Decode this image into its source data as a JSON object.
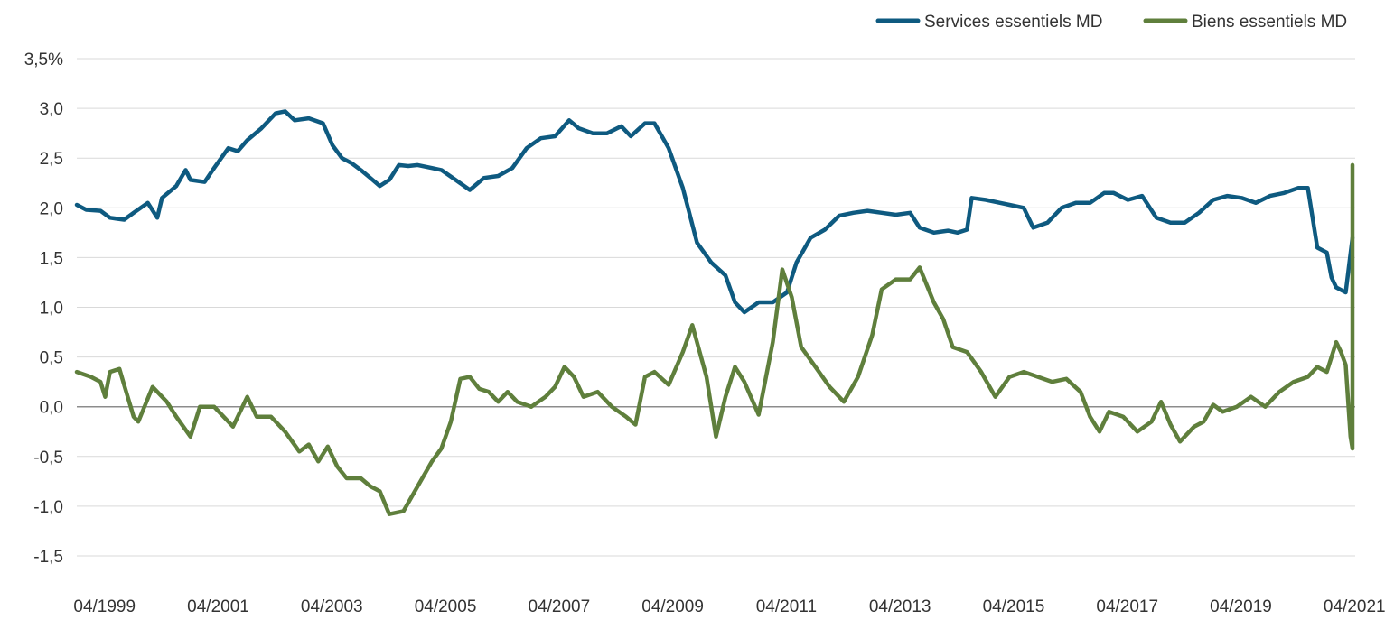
{
  "chart_data": {
    "type": "line",
    "title": "",
    "xlabel": "",
    "ylabel": "",
    "ylim": [
      -1.5,
      3.5
    ],
    "y_ticks": [
      3.5,
      3.0,
      2.5,
      2.0,
      1.5,
      1.0,
      0.5,
      0.0,
      -0.5,
      -1.0,
      -1.5
    ],
    "y_tick_labels": [
      "3,5%",
      "3,0",
      "2,5",
      "2,0",
      "1,5",
      "1,0",
      "0,5",
      "0,0",
      "-0,5",
      "-1,0",
      "-1,5"
    ],
    "x_range": [
      "1999-01",
      "2021-07"
    ],
    "x_ticks": [
      "1999-04",
      "2001-04",
      "2003-04",
      "2005-04",
      "2007-04",
      "2009-04",
      "2011-04",
      "2013-04",
      "2015-04",
      "2017-04",
      "2019-04",
      "2021-04"
    ],
    "x_tick_labels": [
      "04/1999",
      "04/2001",
      "04/2003",
      "04/2005",
      "04/2007",
      "04/2009",
      "04/2011",
      "04/2013",
      "04/2015",
      "04/2017",
      "04/2019",
      "04/2021"
    ],
    "grid": "horizontal",
    "zero_line": true,
    "legend_position": "top-right",
    "series": [
      {
        "name": "Services essentiels MD",
        "color": "#0e5a80",
        "points": [
          [
            "1999-01",
            2.03
          ],
          [
            "1999-03",
            1.98
          ],
          [
            "1999-06",
            1.97
          ],
          [
            "1999-08",
            1.9
          ],
          [
            "1999-11",
            1.88
          ],
          [
            "2000-01",
            1.95
          ],
          [
            "2000-04",
            2.05
          ],
          [
            "2000-06",
            1.9
          ],
          [
            "2000-07",
            2.1
          ],
          [
            "2000-10",
            2.22
          ],
          [
            "2000-12",
            2.38
          ],
          [
            "2001-01",
            2.28
          ],
          [
            "2001-04",
            2.26
          ],
          [
            "2001-06",
            2.4
          ],
          [
            "2001-09",
            2.6
          ],
          [
            "2001-11",
            2.57
          ],
          [
            "2002-01",
            2.68
          ],
          [
            "2002-04",
            2.8
          ],
          [
            "2002-07",
            2.95
          ],
          [
            "2002-09",
            2.97
          ],
          [
            "2002-11",
            2.88
          ],
          [
            "2003-02",
            2.9
          ],
          [
            "2003-05",
            2.85
          ],
          [
            "2003-07",
            2.63
          ],
          [
            "2003-09",
            2.5
          ],
          [
            "2003-11",
            2.45
          ],
          [
            "2004-01",
            2.38
          ],
          [
            "2004-03",
            2.3
          ],
          [
            "2004-05",
            2.22
          ],
          [
            "2004-07",
            2.28
          ],
          [
            "2004-09",
            2.43
          ],
          [
            "2004-11",
            2.42
          ],
          [
            "2005-01",
            2.43
          ],
          [
            "2005-04",
            2.4
          ],
          [
            "2005-06",
            2.38
          ],
          [
            "2005-09",
            2.28
          ],
          [
            "2005-12",
            2.18
          ],
          [
            "2006-03",
            2.3
          ],
          [
            "2006-06",
            2.32
          ],
          [
            "2006-09",
            2.4
          ],
          [
            "2006-12",
            2.6
          ],
          [
            "2007-03",
            2.7
          ],
          [
            "2007-06",
            2.72
          ],
          [
            "2007-09",
            2.88
          ],
          [
            "2007-11",
            2.8
          ],
          [
            "2008-02",
            2.75
          ],
          [
            "2008-05",
            2.75
          ],
          [
            "2008-08",
            2.82
          ],
          [
            "2008-10",
            2.72
          ],
          [
            "2009-01",
            2.85
          ],
          [
            "2009-03",
            2.85
          ],
          [
            "2009-06",
            2.6
          ],
          [
            "2009-09",
            2.2
          ],
          [
            "2009-12",
            1.65
          ],
          [
            "2010-03",
            1.45
          ],
          [
            "2010-06",
            1.32
          ],
          [
            "2010-08",
            1.05
          ],
          [
            "2010-10",
            0.95
          ],
          [
            "2011-01",
            1.05
          ],
          [
            "2011-04",
            1.05
          ],
          [
            "2011-07",
            1.15
          ],
          [
            "2011-09",
            1.45
          ],
          [
            "2011-12",
            1.7
          ],
          [
            "2012-03",
            1.78
          ],
          [
            "2012-06",
            1.92
          ],
          [
            "2012-09",
            1.95
          ],
          [
            "2012-12",
            1.97
          ],
          [
            "2013-03",
            1.95
          ],
          [
            "2013-06",
            1.93
          ],
          [
            "2013-09",
            1.95
          ],
          [
            "2013-11",
            1.8
          ],
          [
            "2014-02",
            1.75
          ],
          [
            "2014-05",
            1.77
          ],
          [
            "2014-07",
            1.75
          ],
          [
            "2014-09",
            1.78
          ],
          [
            "2014-10",
            2.1
          ],
          [
            "2015-01",
            2.08
          ],
          [
            "2015-04",
            2.05
          ],
          [
            "2015-06",
            2.03
          ],
          [
            "2015-09",
            2.0
          ],
          [
            "2015-11",
            1.8
          ],
          [
            "2016-02",
            1.85
          ],
          [
            "2016-05",
            2.0
          ],
          [
            "2016-08",
            2.05
          ],
          [
            "2016-11",
            2.05
          ],
          [
            "2017-02",
            2.15
          ],
          [
            "2017-04",
            2.15
          ],
          [
            "2017-07",
            2.08
          ],
          [
            "2017-10",
            2.12
          ],
          [
            "2018-01",
            1.9
          ],
          [
            "2018-04",
            1.85
          ],
          [
            "2018-07",
            1.85
          ],
          [
            "2018-10",
            1.95
          ],
          [
            "2019-01",
            2.08
          ],
          [
            "2019-04",
            2.12
          ],
          [
            "2019-07",
            2.1
          ],
          [
            "2019-10",
            2.05
          ],
          [
            "2020-01",
            2.12
          ],
          [
            "2020-04",
            2.15
          ],
          [
            "2020-07",
            2.2
          ],
          [
            "2020-09",
            2.2
          ],
          [
            "2020-11",
            1.6
          ],
          [
            "2021-01",
            1.55
          ],
          [
            "2021-02",
            1.3
          ],
          [
            "2021-03",
            1.2
          ],
          [
            "2021-05",
            1.15
          ],
          [
            "2021-07",
            1.7
          ]
        ]
      },
      {
        "name": "Biens essentiels MD",
        "color": "#5f7f3c",
        "points": [
          [
            "1999-01",
            0.35
          ],
          [
            "1999-04",
            0.3
          ],
          [
            "1999-06",
            0.25
          ],
          [
            "1999-07",
            0.1
          ],
          [
            "1999-08",
            0.35
          ],
          [
            "1999-10",
            0.38
          ],
          [
            "1999-11",
            0.22
          ],
          [
            "2000-01",
            -0.1
          ],
          [
            "2000-02",
            -0.15
          ],
          [
            "2000-05",
            0.2
          ],
          [
            "2000-08",
            0.05
          ],
          [
            "2000-10",
            -0.1
          ],
          [
            "2001-01",
            -0.3
          ],
          [
            "2001-03",
            0.0
          ],
          [
            "2001-06",
            0.0
          ],
          [
            "2001-08",
            -0.1
          ],
          [
            "2001-10",
            -0.2
          ],
          [
            "2002-01",
            0.1
          ],
          [
            "2002-03",
            -0.1
          ],
          [
            "2002-06",
            -0.1
          ],
          [
            "2002-09",
            -0.25
          ],
          [
            "2002-12",
            -0.45
          ],
          [
            "2003-02",
            -0.38
          ],
          [
            "2003-04",
            -0.55
          ],
          [
            "2003-06",
            -0.4
          ],
          [
            "2003-08",
            -0.6
          ],
          [
            "2003-10",
            -0.72
          ],
          [
            "2004-01",
            -0.72
          ],
          [
            "2004-03",
            -0.8
          ],
          [
            "2004-05",
            -0.85
          ],
          [
            "2004-07",
            -1.08
          ],
          [
            "2004-10",
            -1.05
          ],
          [
            "2005-01",
            -0.8
          ],
          [
            "2005-04",
            -0.55
          ],
          [
            "2005-06",
            -0.42
          ],
          [
            "2005-08",
            -0.15
          ],
          [
            "2005-10",
            0.28
          ],
          [
            "2005-12",
            0.3
          ],
          [
            "2006-02",
            0.18
          ],
          [
            "2006-04",
            0.15
          ],
          [
            "2006-06",
            0.05
          ],
          [
            "2006-08",
            0.15
          ],
          [
            "2006-10",
            0.05
          ],
          [
            "2007-01",
            0.0
          ],
          [
            "2007-04",
            0.1
          ],
          [
            "2007-06",
            0.2
          ],
          [
            "2007-08",
            0.4
          ],
          [
            "2007-10",
            0.3
          ],
          [
            "2007-12",
            0.1
          ],
          [
            "2008-03",
            0.15
          ],
          [
            "2008-06",
            0.0
          ],
          [
            "2008-09",
            -0.1
          ],
          [
            "2008-11",
            -0.18
          ],
          [
            "2009-01",
            0.3
          ],
          [
            "2009-03",
            0.35
          ],
          [
            "2009-06",
            0.22
          ],
          [
            "2009-09",
            0.55
          ],
          [
            "2009-11",
            0.82
          ],
          [
            "2010-02",
            0.3
          ],
          [
            "2010-04",
            -0.3
          ],
          [
            "2010-06",
            0.1
          ],
          [
            "2010-08",
            0.4
          ],
          [
            "2010-10",
            0.25
          ],
          [
            "2011-01",
            -0.08
          ],
          [
            "2011-04",
            0.65
          ],
          [
            "2011-06",
            1.38
          ],
          [
            "2011-08",
            1.1
          ],
          [
            "2011-10",
            0.6
          ],
          [
            "2012-01",
            0.4
          ],
          [
            "2012-04",
            0.2
          ],
          [
            "2012-07",
            0.05
          ],
          [
            "2012-10",
            0.3
          ],
          [
            "2013-01",
            0.72
          ],
          [
            "2013-03",
            1.18
          ],
          [
            "2013-06",
            1.28
          ],
          [
            "2013-09",
            1.28
          ],
          [
            "2013-11",
            1.4
          ],
          [
            "2014-02",
            1.05
          ],
          [
            "2014-04",
            0.88
          ],
          [
            "2014-06",
            0.6
          ],
          [
            "2014-09",
            0.55
          ],
          [
            "2014-12",
            0.35
          ],
          [
            "2015-03",
            0.1
          ],
          [
            "2015-06",
            0.3
          ],
          [
            "2015-09",
            0.35
          ],
          [
            "2015-12",
            0.3
          ],
          [
            "2016-03",
            0.25
          ],
          [
            "2016-06",
            0.28
          ],
          [
            "2016-09",
            0.15
          ],
          [
            "2016-11",
            -0.1
          ],
          [
            "2017-01",
            -0.25
          ],
          [
            "2017-03",
            -0.05
          ],
          [
            "2017-06",
            -0.1
          ],
          [
            "2017-09",
            -0.25
          ],
          [
            "2017-12",
            -0.15
          ],
          [
            "2018-02",
            0.05
          ],
          [
            "2018-04",
            -0.18
          ],
          [
            "2018-06",
            -0.35
          ],
          [
            "2018-09",
            -0.2
          ],
          [
            "2018-11",
            -0.15
          ],
          [
            "2019-01",
            0.02
          ],
          [
            "2019-03",
            -0.05
          ],
          [
            "2019-06",
            0.0
          ],
          [
            "2019-09",
            0.1
          ],
          [
            "2019-12",
            0.0
          ],
          [
            "2020-03",
            0.15
          ],
          [
            "2020-06",
            0.25
          ],
          [
            "2020-09",
            0.3
          ],
          [
            "2020-11",
            0.4
          ],
          [
            "2021-01",
            0.35
          ],
          [
            "2021-03",
            0.65
          ],
          [
            "2021-04",
            0.55
          ],
          [
            "2021-05",
            0.42
          ],
          [
            "2021-06",
            -0.3
          ],
          [
            "2021-07",
            -0.42
          ],
          [
            "2021-08",
            0.35
          ],
          [
            "2021-09",
            0.6
          ],
          [
            "2021-10",
            0.6
          ],
          [
            "2021-11",
            1.22
          ],
          [
            "2021-12",
            0.9
          ],
          [
            "2022-01",
            2.43
          ]
        ]
      }
    ]
  }
}
